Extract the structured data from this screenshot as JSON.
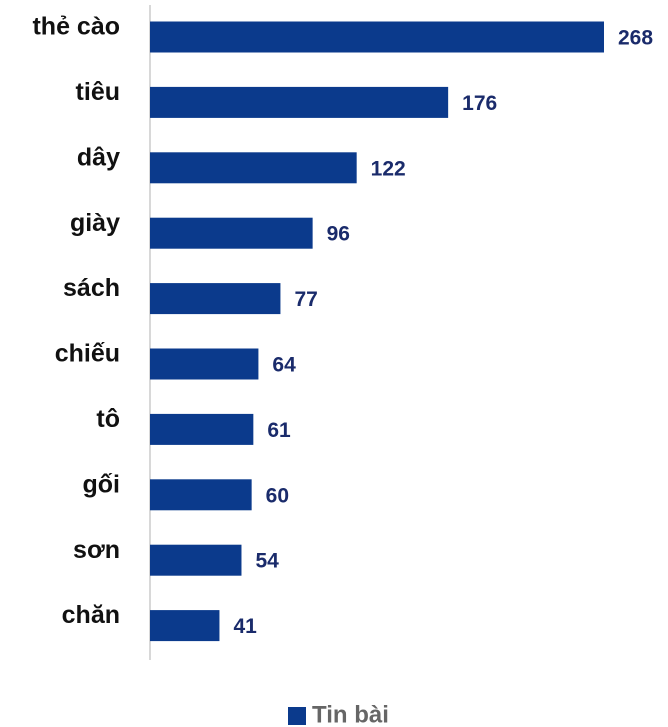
{
  "chart_data": {
    "type": "bar",
    "orientation": "horizontal",
    "categories": [
      "thẻ cào",
      "tiêu",
      "dây",
      "giày",
      "sách",
      "chiếu",
      "tô",
      "gối",
      "sơn",
      "chăn"
    ],
    "series": [
      {
        "name": "Tin bài",
        "color": "#0b3a8c",
        "values": [
          268,
          176,
          122,
          96,
          77,
          64,
          61,
          60,
          54,
          41
        ]
      }
    ],
    "legend": "bottom"
  }
}
